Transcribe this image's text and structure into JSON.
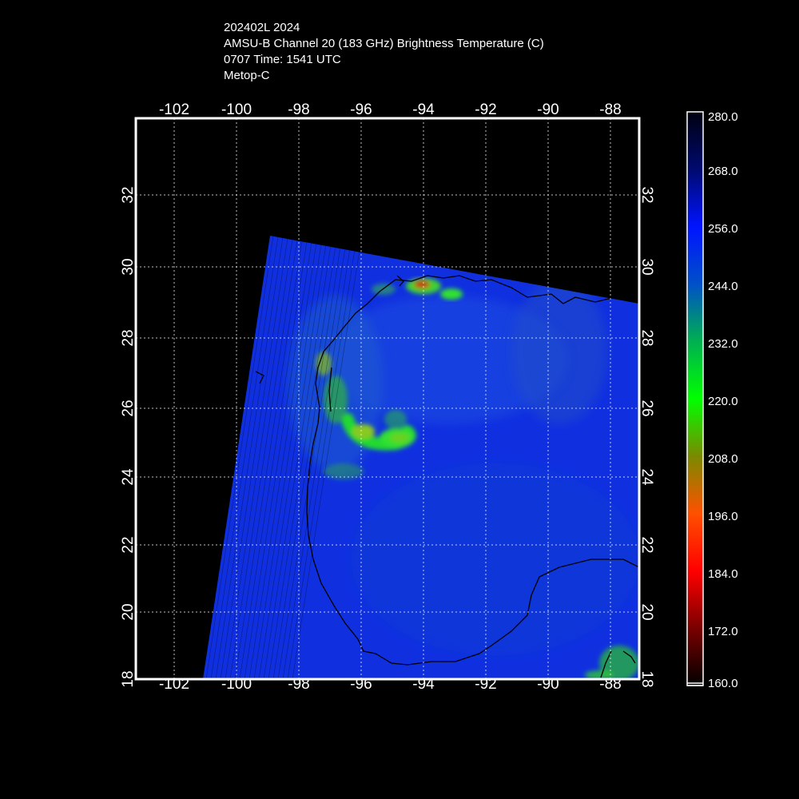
{
  "header": {
    "line1": "202402L 2024",
    "line2": "AMSU-B Channel 20 (183 GHz) Brightness Temperature (C)",
    "line3": "0707 Time: 1541 UTC",
    "line4": "Metop-C"
  },
  "map": {
    "lon_range": [
      -103,
      -87
    ],
    "lat_range": [
      18,
      34
    ],
    "lon_ticks": [
      "-102",
      "-100",
      "-98",
      "-96",
      "-94",
      "-92",
      "-90",
      "-88"
    ],
    "lat_ticks": [
      "18",
      "20",
      "22",
      "24",
      "26",
      "28",
      "30",
      "32"
    ],
    "grid": true,
    "background_color": "#000000",
    "swath_base_color": "#1030e0",
    "coastline_color": "#000000"
  },
  "colorbar": {
    "labels": [
      "280.0",
      "268.0",
      "256.0",
      "244.0",
      "232.0",
      "220.0",
      "208.0",
      "196.0",
      "184.0",
      "172.0",
      "160.0"
    ],
    "colors": [
      "#000010",
      "#000a6e",
      "#0014ff",
      "#0050c8",
      "#00b050",
      "#00ff00",
      "#7a8a00",
      "#ff5000",
      "#ff0000",
      "#7a0000",
      "#000000"
    ]
  }
}
